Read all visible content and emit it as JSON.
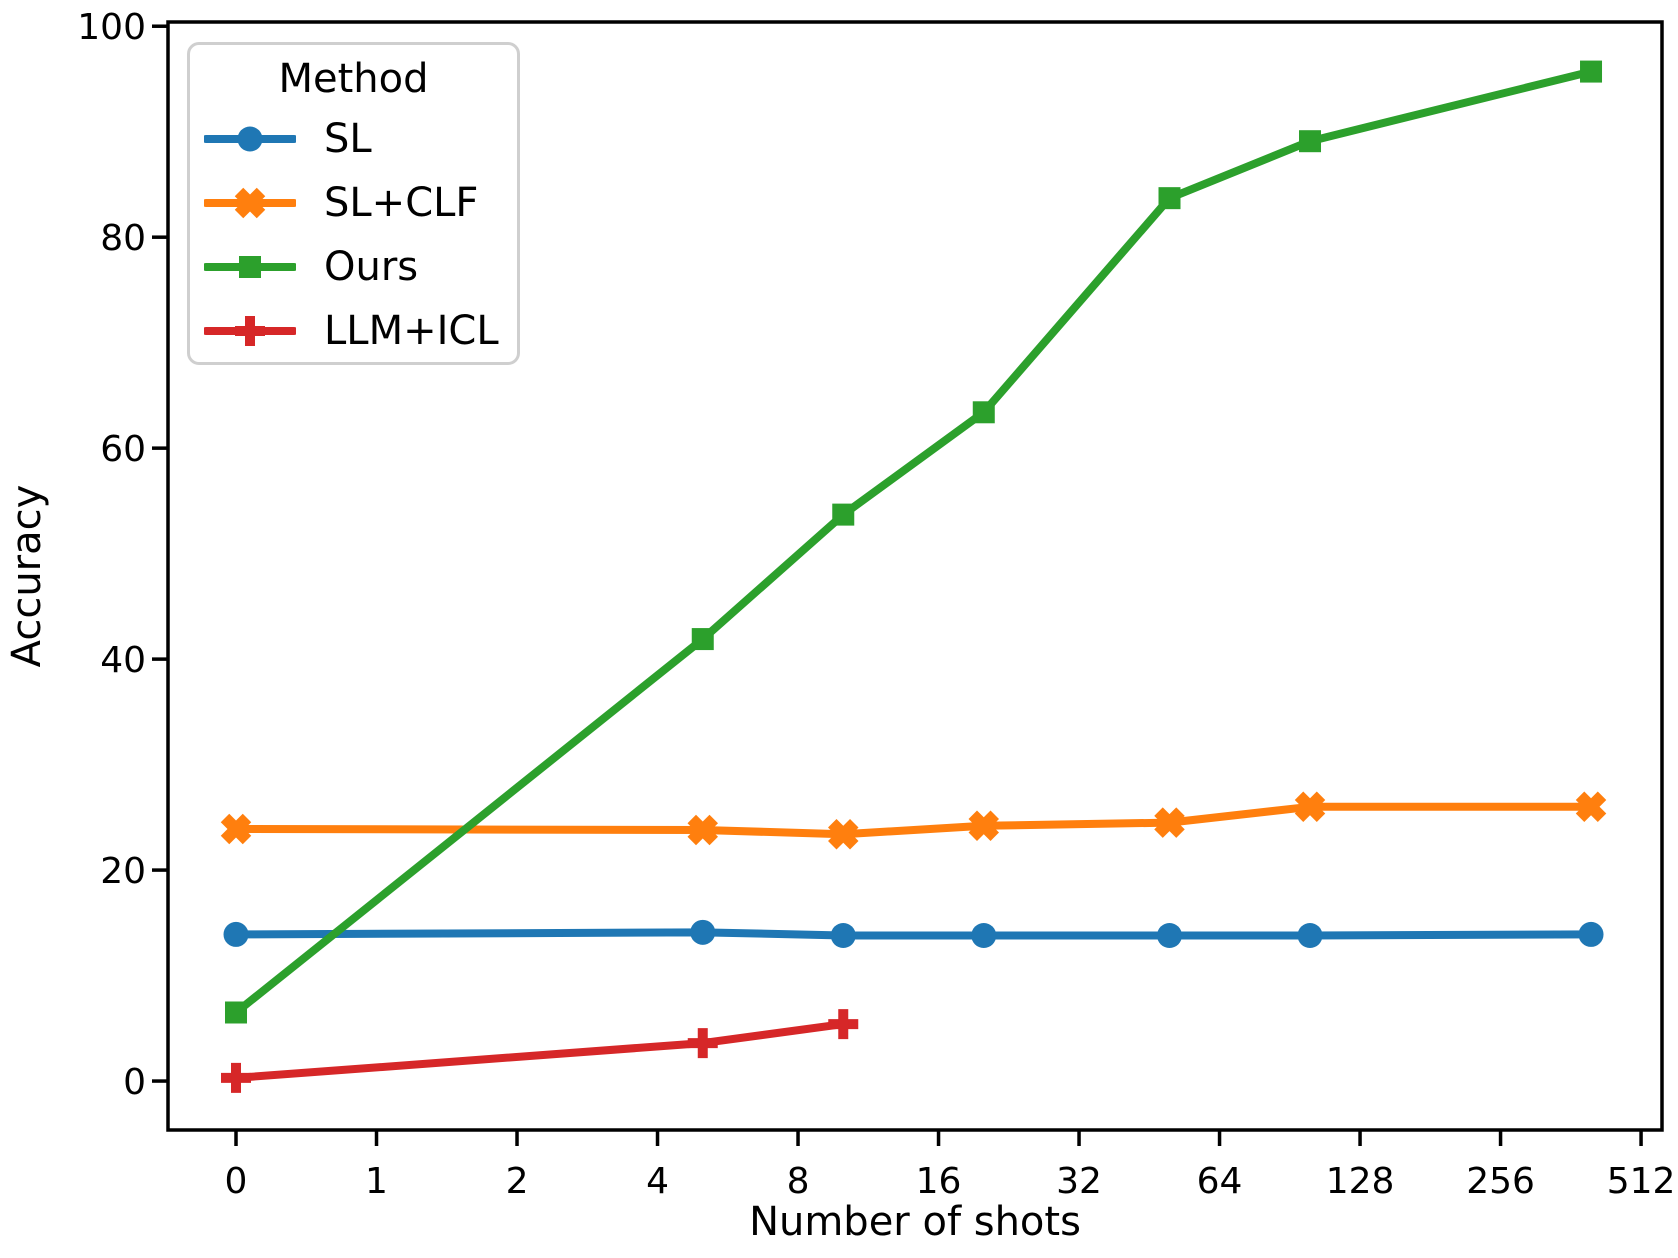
{
  "chart_data": {
    "type": "line",
    "title": "",
    "xlabel": "Number of shots",
    "ylabel": "Accuracy",
    "x_scale": "symlog-base2",
    "x_tick_labels": [
      "0",
      "1",
      "2",
      "4",
      "8",
      "16",
      "32",
      "64",
      "128",
      "256",
      "512"
    ],
    "y_tick_labels": [
      "0",
      "20",
      "40",
      "60",
      "80",
      "100"
    ],
    "y_ticks": [
      0,
      20,
      40,
      60,
      80,
      100
    ],
    "ylim": [
      -4.6,
      100.4
    ],
    "grid": false,
    "legend": {
      "title": "Method",
      "position": "upper left"
    },
    "series": [
      {
        "name": "SL",
        "color": "#1f77b4",
        "marker": "circle",
        "x": [
          0,
          5,
          10,
          20,
          50,
          100,
          400
        ],
        "y": [
          13.9,
          14.1,
          13.8,
          13.8,
          13.8,
          13.8,
          13.9
        ]
      },
      {
        "name": "SL+CLF",
        "color": "#ff7f0e",
        "marker": "x",
        "x": [
          0,
          5,
          10,
          20,
          50,
          100,
          400
        ],
        "y": [
          23.9,
          23.8,
          23.4,
          24.2,
          24.5,
          26.0,
          26.0
        ]
      },
      {
        "name": "Ours",
        "color": "#2ca02c",
        "marker": "square",
        "x": [
          0,
          5,
          10,
          20,
          50,
          100,
          400
        ],
        "y": [
          6.5,
          41.9,
          53.7,
          63.4,
          83.7,
          89.1,
          95.7
        ]
      },
      {
        "name": "LLM+ICL",
        "color": "#d62728",
        "marker": "plus",
        "x": [
          0,
          5,
          10
        ],
        "y": [
          0.3,
          3.6,
          5.4
        ]
      }
    ]
  }
}
